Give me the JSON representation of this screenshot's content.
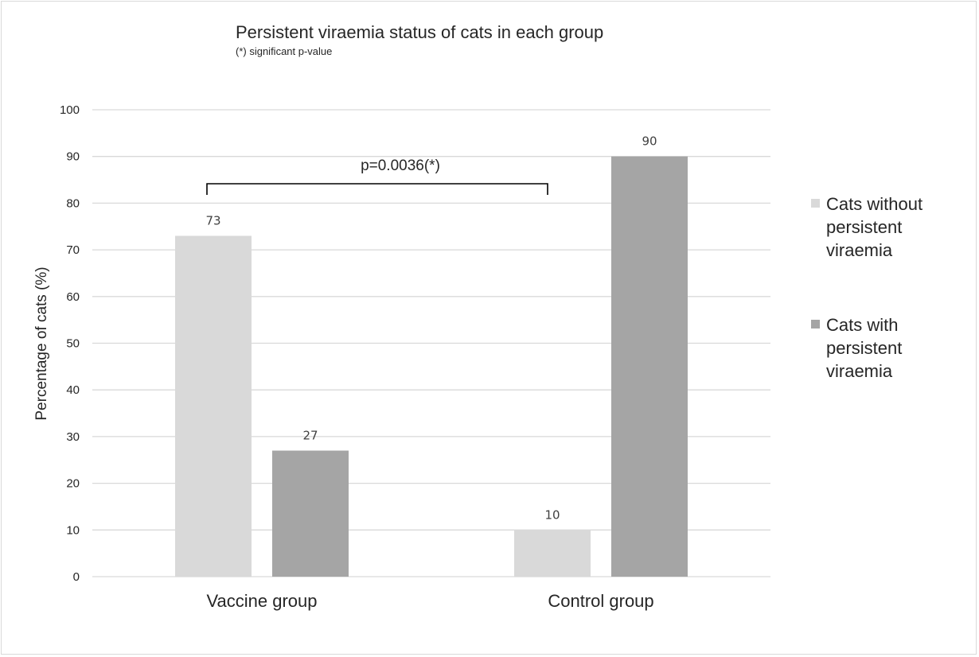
{
  "chart_data": {
    "type": "bar",
    "title": "Persistent viraemia status of cats in each group",
    "subtitle": "(*) significant p-value",
    "xlabel": "",
    "ylabel": "Percentage of cats (%)",
    "categories": [
      "Vaccine group",
      "Control group"
    ],
    "series": [
      {
        "name": "Cats without persistent viraemia",
        "values": [
          73,
          10
        ],
        "color": "#d9d9d9"
      },
      {
        "name": "Cats with persistent viraemia",
        "values": [
          27,
          90
        ],
        "color": "#a5a5a5"
      }
    ],
    "ylim": [
      0,
      100
    ],
    "yticks": [
      0,
      10,
      20,
      30,
      40,
      50,
      60,
      70,
      80,
      90,
      100
    ],
    "grid": true,
    "legend_position": "right",
    "data_labels": true,
    "annotation": {
      "text": "p=0.0036(*)",
      "type": "bracket",
      "from": "Vaccine group",
      "to": "Control group"
    }
  }
}
